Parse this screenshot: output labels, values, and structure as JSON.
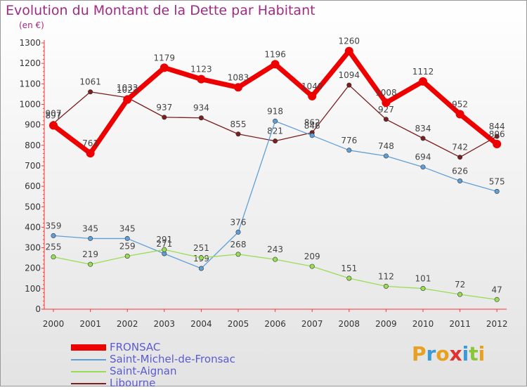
{
  "title": "Evolution du Montant de la Dette par Habitant",
  "unit": "(en €)",
  "logo": {
    "letters": [
      "P",
      "r",
      "o",
      "x",
      "i",
      "t",
      "i"
    ],
    "colors": [
      "#e8a020",
      "#3a9bd8",
      "#e8a020",
      "#e03030",
      "#3a9bd8",
      "#8ac63c",
      "#e8a020"
    ]
  },
  "chart_data": {
    "type": "line",
    "x": [
      "2000",
      "2001",
      "2002",
      "2003",
      "2004",
      "2005",
      "2006",
      "2007",
      "2008",
      "2009",
      "2010",
      "2011",
      "2012"
    ],
    "ylim": [
      0,
      1300
    ],
    "yticks": [
      0,
      100,
      200,
      300,
      400,
      500,
      600,
      700,
      800,
      900,
      1000,
      1100,
      1200,
      1300
    ],
    "grid": false,
    "legend_position": "bottom-left",
    "series": [
      {
        "name": "FRONSAC",
        "color": "#ee0000",
        "values": [
          897,
          761,
          1023,
          1179,
          1123,
          1083,
          1196,
          1040,
          1260,
          1008,
          1112,
          952,
          806
        ]
      },
      {
        "name": "Saint-Michel-de-Fronsac",
        "color": "#5f9fd8",
        "values": [
          359,
          345,
          345,
          271,
          199,
          376,
          918,
          848,
          776,
          748,
          694,
          626,
          575
        ]
      },
      {
        "name": "Saint-Aignan",
        "color": "#99dd55",
        "values": [
          255,
          219,
          259,
          291,
          251,
          268,
          243,
          209,
          151,
          112,
          101,
          72,
          47
        ]
      },
      {
        "name": "Libourne",
        "color": "#7a1e1e",
        "values": [
          907,
          1061,
          1033,
          937,
          934,
          855,
          821,
          862,
          1094,
          927,
          834,
          742,
          844
        ]
      }
    ]
  }
}
